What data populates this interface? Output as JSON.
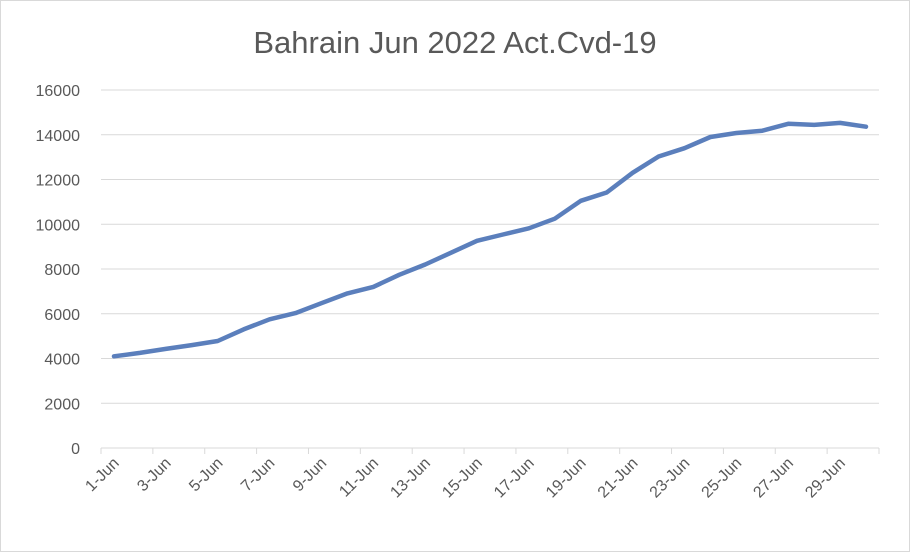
{
  "chart_data": {
    "type": "line",
    "title": "Bahrain Jun 2022 Act.Cvd-19",
    "xlabel": "",
    "ylabel": "",
    "ylim": [
      0,
      16000
    ],
    "yticks": [
      0,
      2000,
      4000,
      6000,
      8000,
      10000,
      12000,
      14000,
      16000
    ],
    "ytick_labels": [
      "0",
      "2000",
      "4000",
      "6000",
      "8000",
      "10000",
      "12000",
      "14000",
      "16000"
    ],
    "grid": true,
    "legend": "none",
    "x": [
      "1-Jun",
      "2-Jun",
      "3-Jun",
      "4-Jun",
      "5-Jun",
      "6-Jun",
      "7-Jun",
      "8-Jun",
      "9-Jun",
      "10-Jun",
      "11-Jun",
      "12-Jun",
      "13-Jun",
      "14-Jun",
      "15-Jun",
      "16-Jun",
      "17-Jun",
      "18-Jun",
      "19-Jun",
      "20-Jun",
      "21-Jun",
      "22-Jun",
      "23-Jun",
      "24-Jun",
      "25-Jun",
      "26-Jun",
      "27-Jun",
      "28-Jun",
      "29-Jun",
      "30-Jun"
    ],
    "x_tick_labels": [
      "1-Jun",
      "3-Jun",
      "5-Jun",
      "7-Jun",
      "9-Jun",
      "11-Jun",
      "13-Jun",
      "15-Jun",
      "17-Jun",
      "19-Jun",
      "21-Jun",
      "23-Jun",
      "25-Jun",
      "27-Jun",
      "29-Jun"
    ],
    "series": [
      {
        "color": "#5b7fbc",
        "values": [
          4100,
          4250,
          4430,
          4600,
          4780,
          5300,
          5750,
          6030,
          6470,
          6910,
          7200,
          7740,
          8200,
          8730,
          9260,
          9540,
          9820,
          10250,
          11050,
          11420,
          12300,
          13030,
          13400,
          13900,
          14080,
          14180,
          14490,
          14440,
          14530,
          14360
        ]
      }
    ]
  }
}
